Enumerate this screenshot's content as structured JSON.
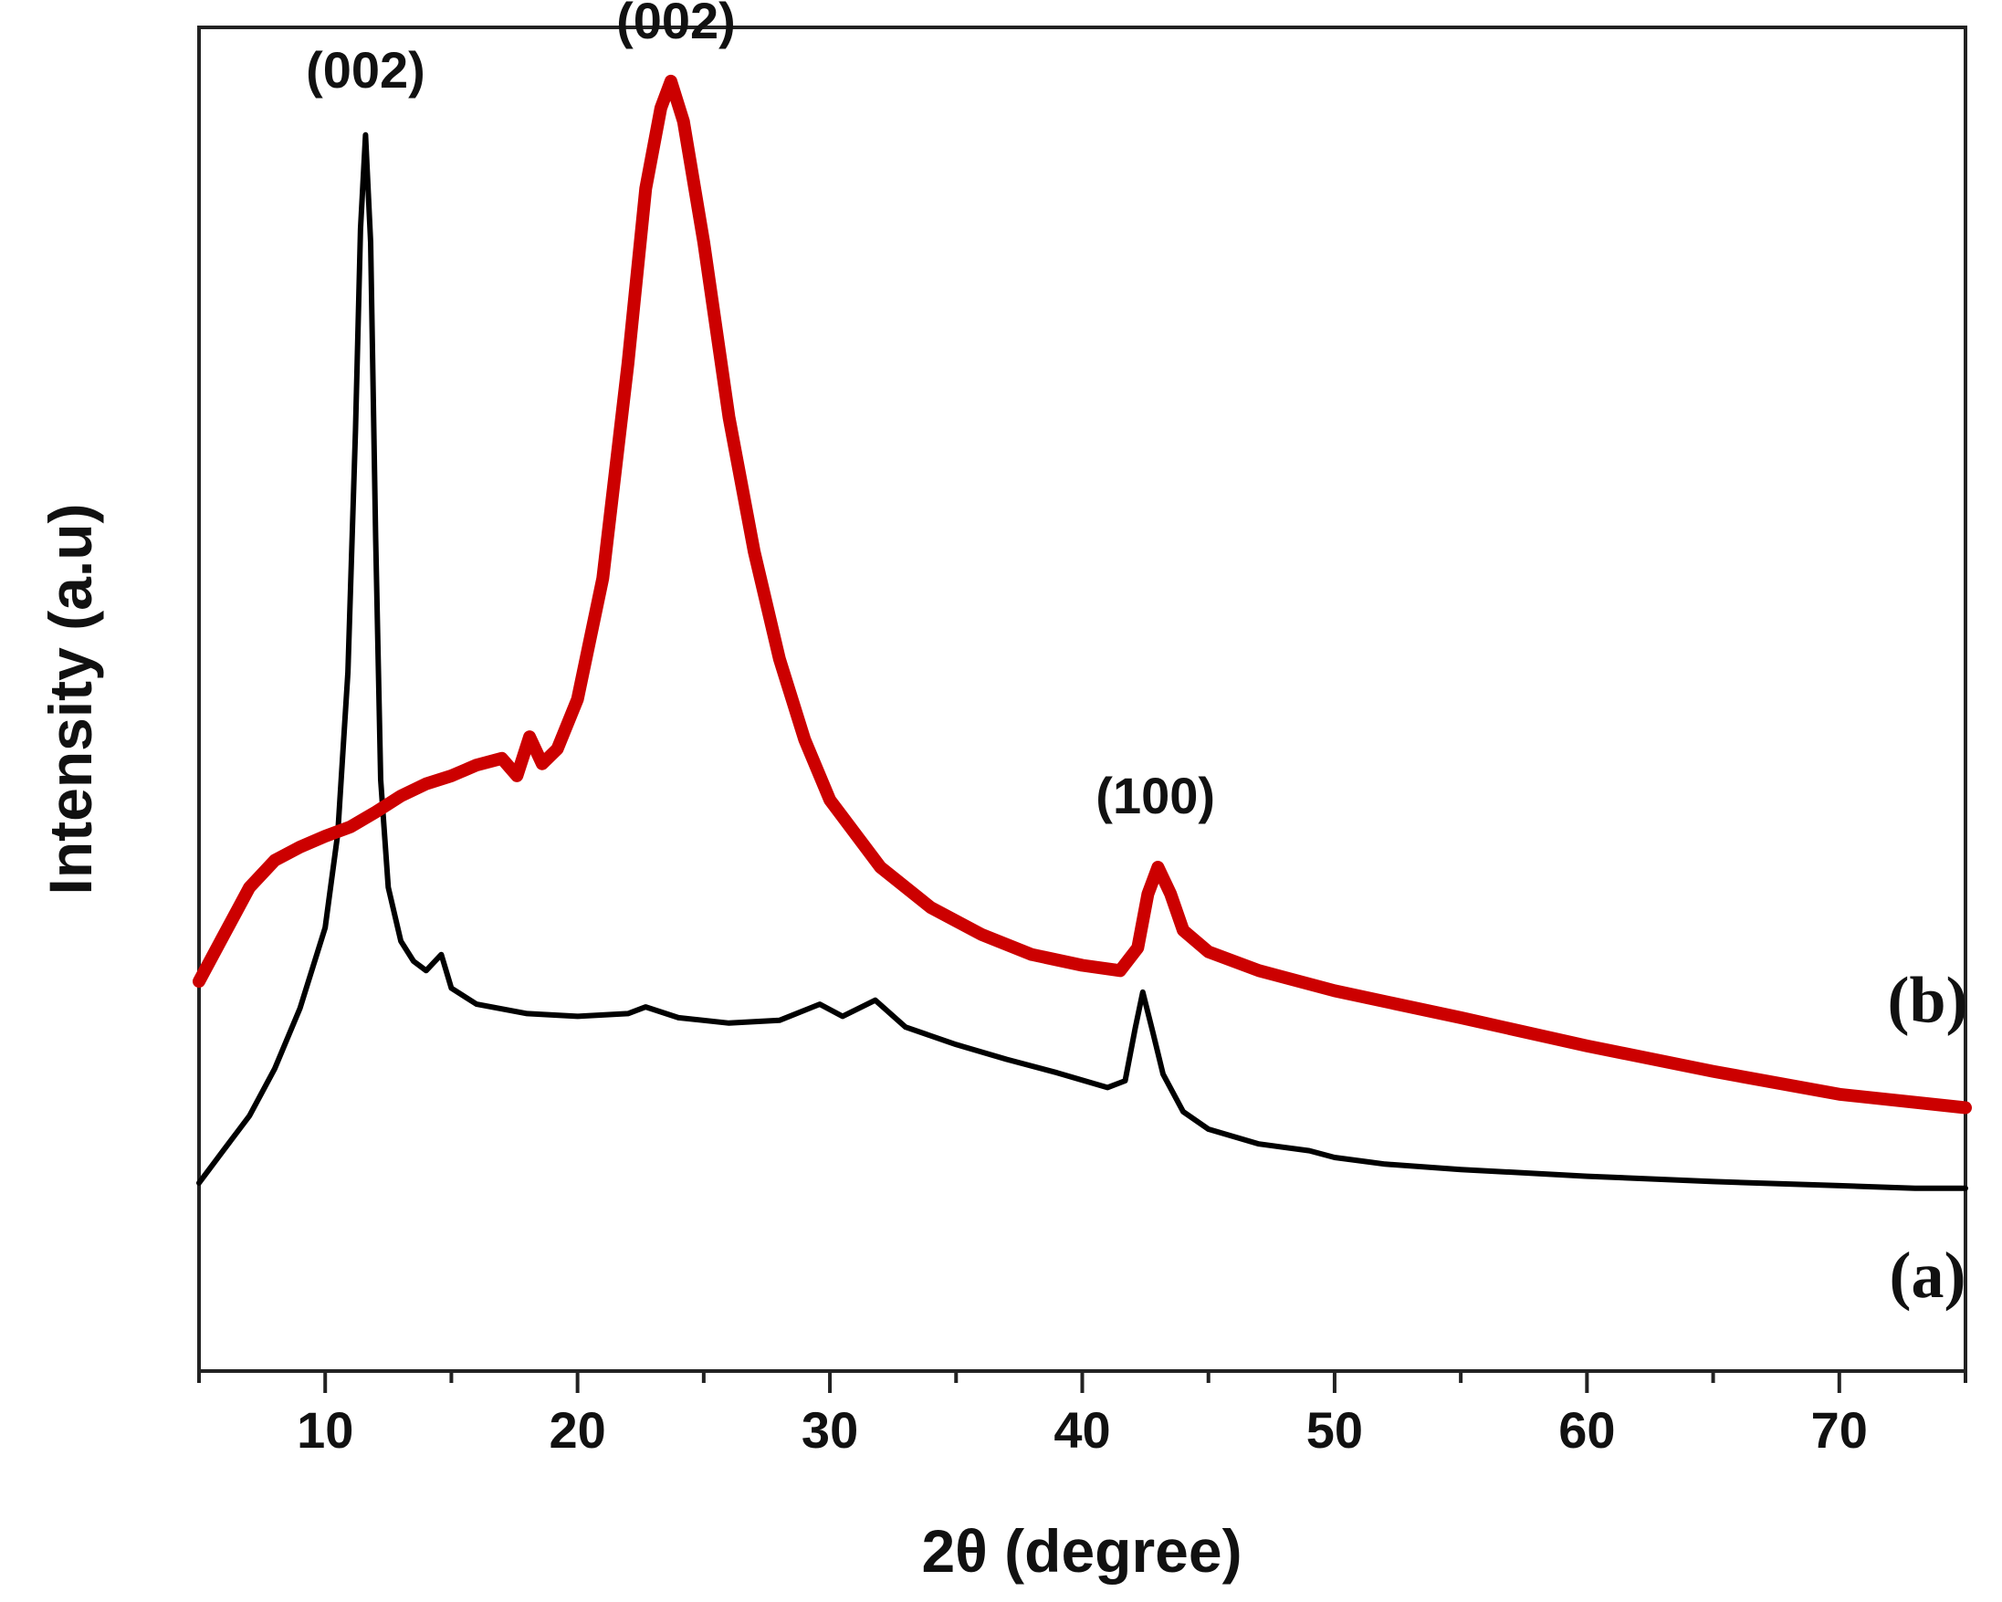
{
  "chart_data": {
    "type": "line",
    "title": "",
    "xlabel": "2θ (degree)",
    "ylabel": "Intensity (a.u)",
    "xlim": [
      5,
      75
    ],
    "ylim": [
      0,
      100
    ],
    "x_ticks": [
      10,
      20,
      30,
      40,
      50,
      60,
      70
    ],
    "x_tick_labels": [
      "10",
      "20",
      "30",
      "40",
      "50",
      "60",
      "70"
    ],
    "y_ticks_shown": false,
    "grid": false,
    "series": [
      {
        "name": "(a)",
        "color": "#000000",
        "points": [
          [
            5,
            14
          ],
          [
            6,
            16.5
          ],
          [
            7,
            19
          ],
          [
            8,
            22.5
          ],
          [
            9,
            27
          ],
          [
            10,
            33
          ],
          [
            10.5,
            40
          ],
          [
            10.9,
            52
          ],
          [
            11.2,
            70
          ],
          [
            11.4,
            85
          ],
          [
            11.6,
            92
          ],
          [
            11.8,
            84
          ],
          [
            12.0,
            62
          ],
          [
            12.2,
            44
          ],
          [
            12.5,
            36
          ],
          [
            13,
            32
          ],
          [
            13.5,
            30.5
          ],
          [
            14,
            29.8
          ],
          [
            14.6,
            31
          ],
          [
            15,
            28.5
          ],
          [
            16,
            27.3
          ],
          [
            18,
            26.6
          ],
          [
            20,
            26.4
          ],
          [
            22,
            26.6
          ],
          [
            22.7,
            27.1
          ],
          [
            24,
            26.3
          ],
          [
            26,
            25.9
          ],
          [
            28,
            26.1
          ],
          [
            29.6,
            27.3
          ],
          [
            30.5,
            26.4
          ],
          [
            31.8,
            27.6
          ],
          [
            33,
            25.6
          ],
          [
            35,
            24.3
          ],
          [
            37,
            23.2
          ],
          [
            39,
            22.2
          ],
          [
            41,
            21.1
          ],
          [
            41.7,
            21.6
          ],
          [
            42.1,
            25.5
          ],
          [
            42.4,
            28.2
          ],
          [
            42.8,
            25.2
          ],
          [
            43.2,
            22.1
          ],
          [
            44,
            19.3
          ],
          [
            45,
            18.0
          ],
          [
            47,
            16.9
          ],
          [
            49,
            16.4
          ],
          [
            50,
            15.9
          ],
          [
            52,
            15.4
          ],
          [
            55,
            15.0
          ],
          [
            60,
            14.5
          ],
          [
            65,
            14.1
          ],
          [
            70,
            13.8
          ],
          [
            73,
            13.6
          ],
          [
            75,
            13.6
          ]
        ]
      },
      {
        "name": "(b)",
        "color": "#cc0000",
        "points": [
          [
            5,
            29
          ],
          [
            6,
            32.5
          ],
          [
            7,
            36
          ],
          [
            8,
            38
          ],
          [
            9,
            39
          ],
          [
            10,
            39.8
          ],
          [
            11,
            40.5
          ],
          [
            12,
            41.6
          ],
          [
            13,
            42.8
          ],
          [
            14,
            43.7
          ],
          [
            15,
            44.3
          ],
          [
            16,
            45.1
          ],
          [
            17,
            45.6
          ],
          [
            17.6,
            44.3
          ],
          [
            18.1,
            47.2
          ],
          [
            18.6,
            45.2
          ],
          [
            19.2,
            46.3
          ],
          [
            20,
            50
          ],
          [
            21,
            59
          ],
          [
            22,
            75
          ],
          [
            22.7,
            88
          ],
          [
            23.3,
            94
          ],
          [
            23.7,
            96
          ],
          [
            24.2,
            93
          ],
          [
            25,
            84
          ],
          [
            26,
            71
          ],
          [
            27,
            61
          ],
          [
            28,
            53
          ],
          [
            29,
            47
          ],
          [
            30,
            42.5
          ],
          [
            32,
            37.5
          ],
          [
            34,
            34.5
          ],
          [
            36,
            32.5
          ],
          [
            38,
            31
          ],
          [
            40,
            30.2
          ],
          [
            41.5,
            29.8
          ],
          [
            42.2,
            31.5
          ],
          [
            42.6,
            35.5
          ],
          [
            43.0,
            37.5
          ],
          [
            43.5,
            35.5
          ],
          [
            44,
            32.8
          ],
          [
            45,
            31.2
          ],
          [
            47,
            29.8
          ],
          [
            50,
            28.3
          ],
          [
            55,
            26.3
          ],
          [
            60,
            24.2
          ],
          [
            65,
            22.3
          ],
          [
            70,
            20.6
          ],
          [
            75,
            19.6
          ]
        ]
      }
    ],
    "annotations": [
      {
        "text": "(002)",
        "x": 11.6,
        "y": 95.5
      },
      {
        "text": "(002)",
        "x": 23.9,
        "y": 99.2
      },
      {
        "text": "(100)",
        "x": 42.9,
        "y": 41.5
      },
      {
        "text": "(b)",
        "x": 73.5,
        "y": 26
      },
      {
        "text": "(a)",
        "x": 73.5,
        "y": 5.5
      }
    ]
  }
}
